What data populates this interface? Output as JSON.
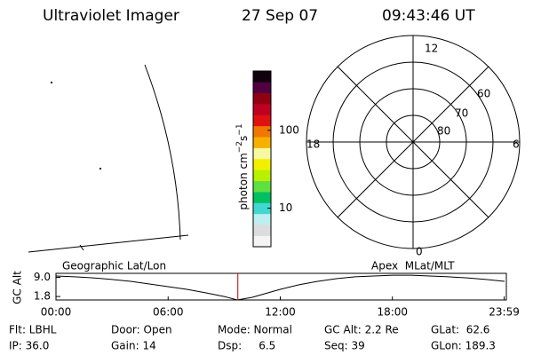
{
  "header": {
    "title": "Ultraviolet Imager",
    "date": "27 Sep 07",
    "time": "09:43:46 UT"
  },
  "colorbar": {
    "label": [
      "photon cm",
      "−2",
      "s",
      "−1"
    ],
    "log": true,
    "lim": [
      3.2,
      577
    ],
    "ticks": [
      10,
      100
    ],
    "colors": [
      "#f4f4f4",
      "#dcdcdc",
      "#bfeeee",
      "#40d8d0",
      "#00c060",
      "#60e040",
      "#b8f000",
      "#f0f000",
      "#f8f8a0",
      "#f8b000",
      "#f07800",
      "#e01010",
      "#c00020",
      "#900010",
      "#500040",
      "#100010"
    ]
  },
  "polar": {
    "mlt_labels": [
      "12",
      "18",
      "6",
      "0"
    ],
    "lat_labels": [
      "60",
      "70",
      "80"
    ]
  },
  "panel_labels": {
    "left": "Geographic Lat/Lon",
    "right": "Apex  MLat/MLT"
  },
  "chart_data": {
    "type": "line",
    "y_label": "GC Alt",
    "x": [
      0,
      1,
      2,
      3,
      4,
      5,
      6,
      7,
      8,
      9,
      9.7,
      10.5,
      11,
      12,
      13,
      14,
      15,
      16,
      17,
      18,
      19,
      20,
      21,
      22,
      23,
      24
    ],
    "values": [
      9.5,
      9.2,
      8.8,
      8.2,
      7.5,
      6.5,
      5.5,
      4.5,
      3.2,
      1.8,
      0.5,
      1.5,
      2.5,
      4.5,
      6.2,
      7.5,
      8.5,
      9.2,
      9.5,
      9.8,
      9.8,
      9.5,
      9.2,
      8.8,
      8.2,
      7.5
    ],
    "color": "#000000",
    "current_x": 9.73,
    "current_color": "#c00000",
    "xlim": [
      0,
      24
    ],
    "ylim": [
      0.5,
      10.5
    ],
    "xticks": [
      {
        "value": 0,
        "label": "00:00"
      },
      {
        "value": 6,
        "label": "06:00"
      },
      {
        "value": 12,
        "label": "12:00"
      },
      {
        "value": 18,
        "label": "18:00"
      },
      {
        "value": 23.98,
        "label": "23:59"
      }
    ],
    "yticks": [
      {
        "value": 9,
        "label": "9.0"
      },
      {
        "value": 1.8,
        "label": "1.8"
      }
    ]
  },
  "info": [
    [
      "Flt: LBHL",
      "Door: Open",
      "Mode: Normal",
      "GC Alt: 2.2 Re",
      "GLat:  62.6"
    ],
    [
      "IP: 36.0",
      "Gain: 14",
      "Dsp:     6.5",
      "Seq: 39",
      "GLon: 189.3"
    ]
  ]
}
